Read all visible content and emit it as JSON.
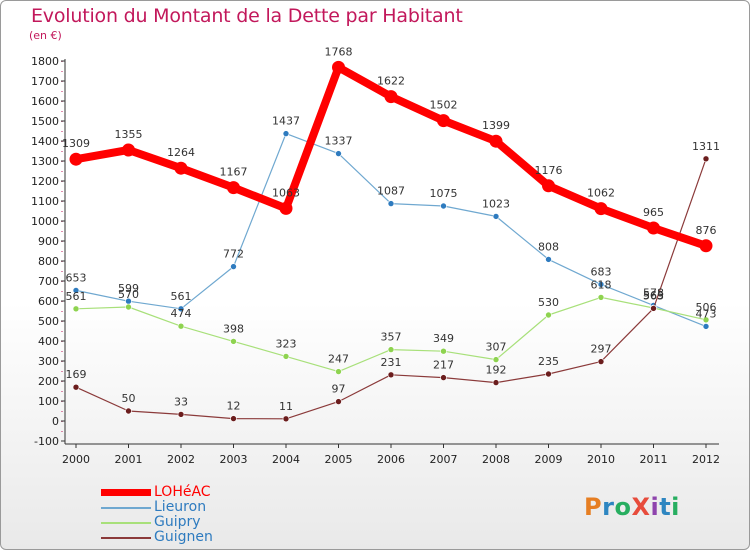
{
  "title": "Evolution du Montant de la Dette par Habitant",
  "subtitle": "(en €)",
  "brand": {
    "text": "ProXiti",
    "colors": [
      "#e67e22",
      "#2e86c1",
      "#27ae60",
      "#e74c3c",
      "#8e44ad",
      "#2e86c1",
      "#27ae60"
    ]
  },
  "chart_data": {
    "type": "line",
    "title": "Evolution du Montant de la Dette par Habitant",
    "subtitle": "(en €)",
    "x": [
      "2000",
      "2001",
      "2002",
      "2003",
      "2004",
      "2005",
      "2006",
      "2007",
      "2008",
      "2009",
      "2010",
      "2011",
      "2012"
    ],
    "ylim": [
      -100,
      1800
    ],
    "yticks": [
      -100,
      0,
      100,
      200,
      300,
      400,
      500,
      600,
      700,
      800,
      900,
      1000,
      1100,
      1200,
      1300,
      1400,
      1500,
      1600,
      1700,
      1800
    ],
    "grid": false,
    "legend_position": "bottom-left",
    "series": [
      {
        "name": "LOHéAC",
        "color": "#ff0000",
        "marker_color": "#ff0000",
        "width": 8,
        "values": [
          1309,
          1355,
          1264,
          1167,
          1063,
          1768,
          1622,
          1502,
          1399,
          1176,
          1062,
          965,
          876
        ]
      },
      {
        "name": "Lieuron",
        "color": "#6fa8d0",
        "marker_color": "#2e7bbf",
        "width": 1.2,
        "values": [
          653,
          599,
          561,
          772,
          1437,
          1337,
          1087,
          1075,
          1023,
          808,
          683,
          578,
          473
        ]
      },
      {
        "name": "Guipry",
        "color": "#a8e07a",
        "marker_color": "#8ed34f",
        "width": 1.2,
        "values": [
          561,
          570,
          474,
          398,
          323,
          247,
          357,
          349,
          307,
          530,
          618,
          565,
          506
        ]
      },
      {
        "name": "Guignen",
        "color": "#8b3a3a",
        "marker_color": "#6b1d1d",
        "width": 1.2,
        "values": [
          169,
          50,
          33,
          12,
          11,
          97,
          231,
          217,
          192,
          235,
          297,
          563,
          1311
        ]
      }
    ]
  }
}
